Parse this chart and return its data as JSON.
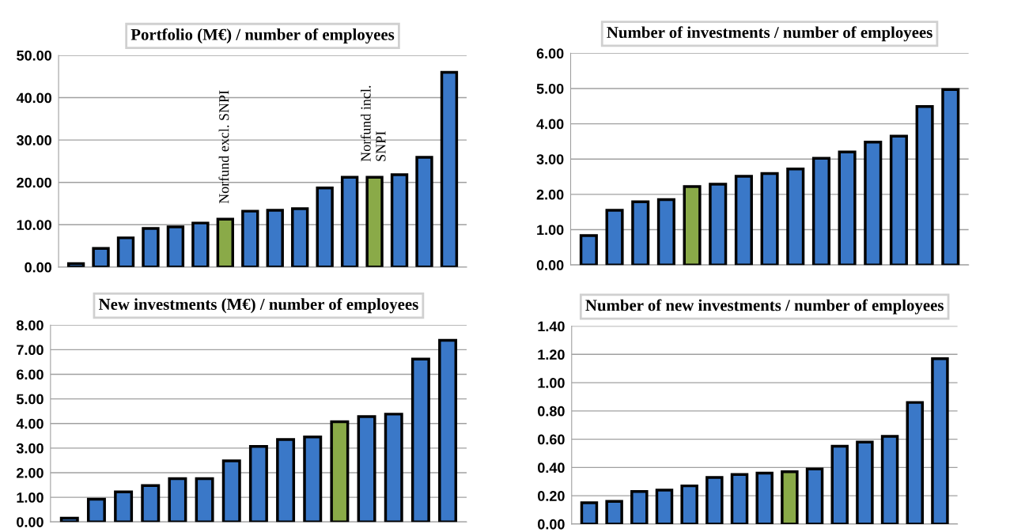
{
  "chart_data": [
    {
      "type": "bar",
      "title": "Portfolio (M€) / number of employees",
      "categories": [
        null,
        null,
        null,
        null,
        null,
        null,
        null,
        null,
        null,
        null,
        null,
        null,
        null,
        null,
        null,
        null
      ],
      "values": [
        0.8,
        4.4,
        6.9,
        9.1,
        9.5,
        10.4,
        11.3,
        13.2,
        13.4,
        13.8,
        18.7,
        21.2,
        21.2,
        21.8,
        25.9,
        46.0
      ],
      "colors": [
        "#3a78c8",
        "#3a78c8",
        "#3a78c8",
        "#3a78c8",
        "#3a78c8",
        "#3a78c8",
        "#8aaa48",
        "#3a78c8",
        "#3a78c8",
        "#3a78c8",
        "#3a78c8",
        "#3a78c8",
        "#8aaa48",
        "#3a78c8",
        "#3a78c8",
        "#3a78c8"
      ],
      "annotations": [
        "Norfund excl. SNPI",
        "Norfund incl.\nSNPI"
      ],
      "ylim": [
        0,
        50
      ],
      "yticks": [
        {
          "value": 0,
          "label": "0.00"
        },
        {
          "value": 10,
          "label": "10.00"
        },
        {
          "value": 20,
          "label": "20.00"
        },
        {
          "value": 30,
          "label": "30.00"
        },
        {
          "value": 40,
          "label": "40.00"
        },
        {
          "value": 50,
          "label": "50.00"
        }
      ],
      "grid": "y"
    },
    {
      "type": "bar",
      "title": "Number of investments / number of employees",
      "categories": [
        null,
        null,
        null,
        null,
        null,
        null,
        null,
        null,
        null,
        null,
        null,
        null,
        null,
        null,
        null
      ],
      "values": [
        0.83,
        1.55,
        1.79,
        1.85,
        2.22,
        2.29,
        2.51,
        2.59,
        2.72,
        3.02,
        3.2,
        3.48,
        3.65,
        4.49,
        4.97
      ],
      "colors": [
        "#3a78c8",
        "#3a78c8",
        "#3a78c8",
        "#3a78c8",
        "#8aaa48",
        "#3a78c8",
        "#3a78c8",
        "#3a78c8",
        "#3a78c8",
        "#3a78c8",
        "#3a78c8",
        "#3a78c8",
        "#3a78c8",
        "#3a78c8",
        "#3a78c8"
      ],
      "ylim": [
        0,
        6
      ],
      "yticks": [
        {
          "value": 0,
          "label": "0.00"
        },
        {
          "value": 1,
          "label": "1.00"
        },
        {
          "value": 2,
          "label": "2.00"
        },
        {
          "value": 3,
          "label": "3.00"
        },
        {
          "value": 4,
          "label": "4.00"
        },
        {
          "value": 5,
          "label": "5.00"
        },
        {
          "value": 6,
          "label": "6.00"
        }
      ],
      "grid": "y"
    },
    {
      "type": "bar",
      "title": "New investments (M€) / number of employees",
      "categories": [
        null,
        null,
        null,
        null,
        null,
        null,
        null,
        null,
        null,
        null,
        null,
        null,
        null,
        null,
        null
      ],
      "values": [
        0.15,
        0.92,
        1.22,
        1.48,
        1.76,
        1.76,
        2.48,
        3.07,
        3.35,
        3.45,
        4.07,
        4.28,
        4.38,
        6.62,
        7.38
      ],
      "colors": [
        "#3a78c8",
        "#3a78c8",
        "#3a78c8",
        "#3a78c8",
        "#3a78c8",
        "#3a78c8",
        "#3a78c8",
        "#3a78c8",
        "#3a78c8",
        "#3a78c8",
        "#8aaa48",
        "#3a78c8",
        "#3a78c8",
        "#3a78c8",
        "#3a78c8"
      ],
      "ylim": [
        0,
        8
      ],
      "yticks": [
        {
          "value": 0,
          "label": "0.00"
        },
        {
          "value": 1,
          "label": "1.00"
        },
        {
          "value": 2,
          "label": "2.00"
        },
        {
          "value": 3,
          "label": "3.00"
        },
        {
          "value": 4,
          "label": "4.00"
        },
        {
          "value": 5,
          "label": "5.00"
        },
        {
          "value": 6,
          "label": "6.00"
        },
        {
          "value": 7,
          "label": "7.00"
        },
        {
          "value": 8,
          "label": "8.00"
        }
      ],
      "grid": "y"
    },
    {
      "type": "bar",
      "title": "Number of new investments / number of employees",
      "categories": [
        null,
        null,
        null,
        null,
        null,
        null,
        null,
        null,
        null,
        null,
        null,
        null,
        null,
        null,
        null
      ],
      "values": [
        0.15,
        0.16,
        0.23,
        0.24,
        0.27,
        0.33,
        0.35,
        0.36,
        0.37,
        0.39,
        0.55,
        0.58,
        0.62,
        0.86,
        1.17
      ],
      "colors": [
        "#3a78c8",
        "#3a78c8",
        "#3a78c8",
        "#3a78c8",
        "#3a78c8",
        "#3a78c8",
        "#3a78c8",
        "#3a78c8",
        "#8aaa48",
        "#3a78c8",
        "#3a78c8",
        "#3a78c8",
        "#3a78c8",
        "#3a78c8",
        "#3a78c8"
      ],
      "ylim": [
        0,
        1.4
      ],
      "yticks": [
        {
          "value": 0,
          "label": "0.00"
        },
        {
          "value": 0.2,
          "label": "0.20"
        },
        {
          "value": 0.4,
          "label": "0.40"
        },
        {
          "value": 0.6,
          "label": "0.60"
        },
        {
          "value": 0.8,
          "label": "0.80"
        },
        {
          "value": 1.0,
          "label": "1.00"
        },
        {
          "value": 1.2,
          "label": "1.20"
        },
        {
          "value": 1.4,
          "label": "1.40"
        }
      ],
      "grid": "y"
    }
  ]
}
